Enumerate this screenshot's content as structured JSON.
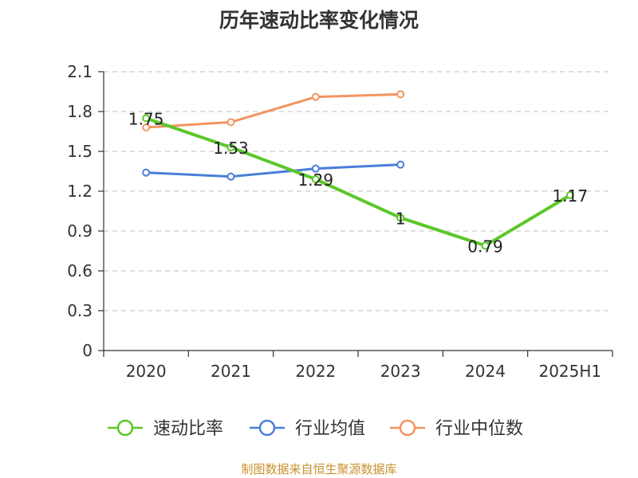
{
  "chart_data": {
    "type": "line",
    "title": "历年速动比率变化情况",
    "categories": [
      "2020",
      "2021",
      "2022",
      "2023",
      "2024",
      "2025H1"
    ],
    "yticks": [
      "0",
      "0.3",
      "0.6",
      "0.9",
      "1.2",
      "1.5",
      "1.8",
      "2.1"
    ],
    "ylim": [
      0,
      2.1
    ],
    "grid": "horizontal-dashed",
    "legend": "bottom",
    "series": [
      {
        "name": "速动比率",
        "color": "#5cc72a",
        "values": [
          1.75,
          1.53,
          1.29,
          1,
          0.79,
          1.17
        ],
        "labels": [
          "1.75",
          "1.53",
          "1.29",
          "1",
          "0.79",
          "1.17"
        ]
      },
      {
        "name": "行业均值",
        "color": "#4a7ed8",
        "values": [
          1.34,
          1.31,
          1.37,
          1.4,
          null,
          null
        ]
      },
      {
        "name": "行业中位数",
        "color": "#f39461",
        "values": [
          1.68,
          1.72,
          1.91,
          1.93,
          null,
          null
        ]
      }
    ]
  },
  "footer": {
    "source": "制图数据来自恒生聚源数据库"
  }
}
